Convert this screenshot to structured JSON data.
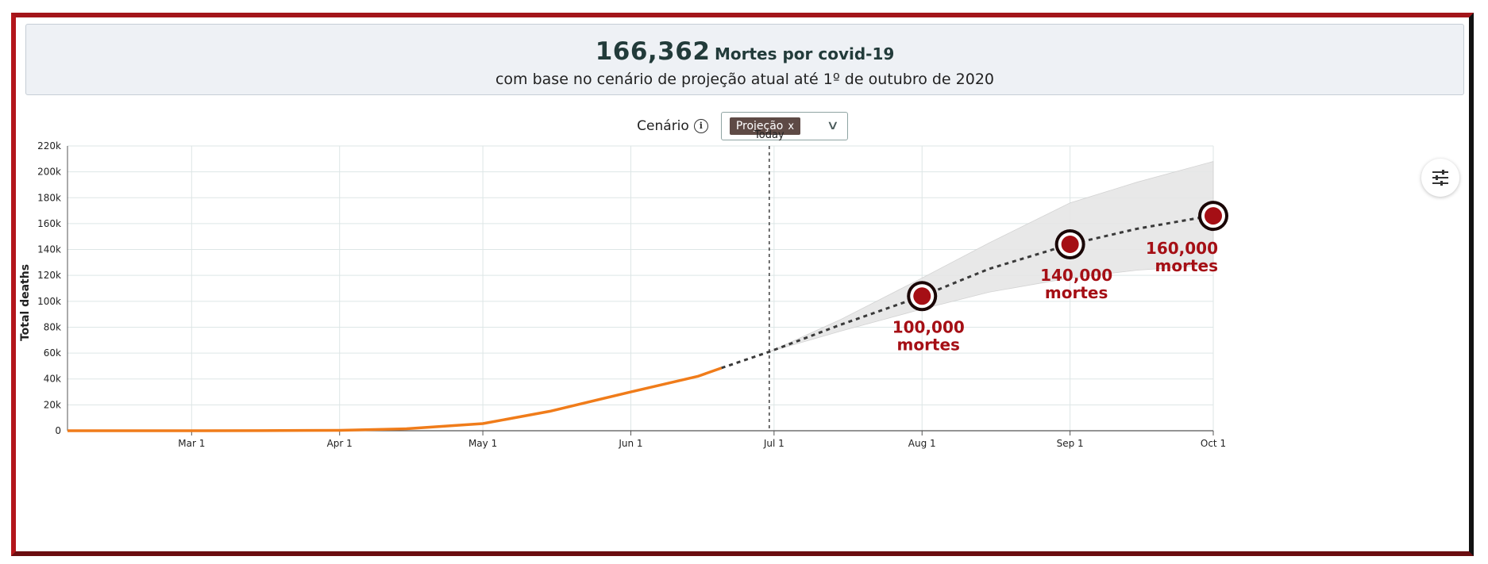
{
  "header": {
    "big_number": "166,362",
    "big_label": "Mortes por covid-19",
    "subtitle": "com base no cenário de projeção atual até 1º de outubro de 2020"
  },
  "scenario": {
    "label": "Cenário",
    "info_icon": "info-circle-icon",
    "selected_chip": "Projeção",
    "chip_remove": "x",
    "dropdown_icon": "chevron-down-icon"
  },
  "settings_icon": "sliders-icon",
  "colors": {
    "observed_line": "#f07c1a",
    "projection_line": "#3a3a3a",
    "uncertainty_band": "#e6e6e6",
    "milestone": "#a50f15",
    "frame": "#b3161b"
  },
  "chart_data": {
    "type": "line",
    "ylabel": "Total deaths",
    "y_ticks": [
      "0",
      "20k",
      "40k",
      "60k",
      "80k",
      "100k",
      "120k",
      "140k",
      "160k",
      "180k",
      "200k",
      "220k"
    ],
    "ylim": [
      0,
      220000
    ],
    "x_ticks": [
      "Mar 1",
      "Apr 1",
      "May 1",
      "Jun 1",
      "Jul 1",
      "Aug 1",
      "Sep 1",
      "Oct 1"
    ],
    "x_range": [
      "2020-02-04",
      "2020-10-01"
    ],
    "grid": true,
    "today": {
      "date": "2020-06-30",
      "label": "Today"
    },
    "series": [
      {
        "points": [
          [
            "2020-02-04",
            0
          ],
          [
            "2020-03-01",
            0
          ],
          [
            "2020-03-15",
            100
          ],
          [
            "2020-04-01",
            300
          ],
          [
            "2020-04-15",
            1500
          ],
          [
            "2020-05-01",
            5500
          ],
          [
            "2020-05-15",
            15000
          ],
          [
            "2020-06-01",
            30000
          ],
          [
            "2020-06-15",
            42000
          ],
          [
            "2020-06-20",
            48500
          ]
        ]
      },
      {
        "points": [
          [
            "2020-06-20",
            48500
          ],
          [
            "2020-06-30",
            61000
          ],
          [
            "2020-07-15",
            82000
          ],
          [
            "2020-08-01",
            104000
          ],
          [
            "2020-08-15",
            125000
          ],
          [
            "2020-09-01",
            144000
          ],
          [
            "2020-09-15",
            156000
          ],
          [
            "2020-10-01",
            166362
          ]
        ]
      }
    ],
    "uncertainty_band": [
      [
        "2020-06-30",
        61000,
        61000
      ],
      [
        "2020-07-15",
        77000,
        86000
      ],
      [
        "2020-08-01",
        94000,
        118000
      ],
      [
        "2020-08-15",
        107000,
        145000
      ],
      [
        "2020-09-01",
        118000,
        176000
      ],
      [
        "2020-09-15",
        124000,
        192000
      ],
      [
        "2020-10-01",
        128000,
        208000
      ]
    ],
    "milestones": [
      {
        "date": "2020-08-01",
        "value": 104000,
        "label": [
          "100,000",
          "mortes"
        ]
      },
      {
        "date": "2020-09-01",
        "value": 144000,
        "label": [
          "140,000",
          "mortes"
        ]
      },
      {
        "date": "2020-10-01",
        "value": 166000,
        "label": [
          "160,000",
          "mortes"
        ]
      }
    ]
  }
}
